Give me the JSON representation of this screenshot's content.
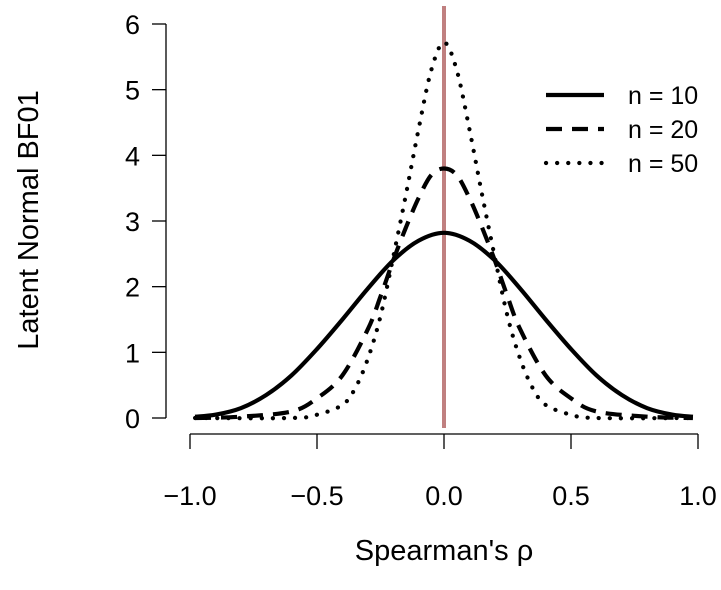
{
  "chart_data": {
    "type": "line",
    "title": "",
    "xlabel": "Spearman's ρ",
    "ylabel": "Latent Normal BF01",
    "xlim": [
      -1.0,
      1.0
    ],
    "ylim": [
      0,
      6
    ],
    "xticks": [
      -1.0,
      -0.5,
      0.0,
      0.5,
      1.0
    ],
    "xtick_labels": [
      "−1.0",
      "−0.5",
      "0.0",
      "0.5",
      "1.0"
    ],
    "yticks": [
      0,
      1,
      2,
      3,
      4,
      5,
      6
    ],
    "ytick_labels": [
      "0",
      "1",
      "2",
      "3",
      "4",
      "5",
      "6"
    ],
    "grid": false,
    "legend": {
      "position": "top-right"
    },
    "reference_line": {
      "x": 0.0,
      "color": "#c08080"
    },
    "series": [
      {
        "name": "n = 10",
        "style": "solid",
        "x": [
          -0.98,
          -0.9,
          -0.8,
          -0.7,
          -0.6,
          -0.5,
          -0.4,
          -0.3,
          -0.2,
          -0.1,
          0.0,
          0.1,
          0.2,
          0.3,
          0.4,
          0.5,
          0.6,
          0.7,
          0.8,
          0.9,
          0.98
        ],
        "y": [
          0.02,
          0.05,
          0.15,
          0.35,
          0.65,
          1.05,
          1.5,
          1.97,
          2.4,
          2.7,
          2.82,
          2.7,
          2.4,
          1.97,
          1.5,
          1.05,
          0.65,
          0.35,
          0.15,
          0.05,
          0.02
        ]
      },
      {
        "name": "n = 20",
        "style": "dashed",
        "x": [
          -0.98,
          -0.8,
          -0.6,
          -0.5,
          -0.4,
          -0.3,
          -0.25,
          -0.2,
          -0.15,
          -0.1,
          -0.05,
          0.0,
          0.05,
          0.1,
          0.15,
          0.2,
          0.25,
          0.3,
          0.4,
          0.5,
          0.6,
          0.8,
          0.98
        ],
        "y": [
          0.0,
          0.02,
          0.1,
          0.3,
          0.65,
          1.35,
          1.85,
          2.4,
          2.9,
          3.35,
          3.7,
          3.8,
          3.7,
          3.35,
          2.9,
          2.4,
          1.85,
          1.35,
          0.65,
          0.3,
          0.1,
          0.02,
          0.0
        ]
      },
      {
        "name": "n = 50",
        "style": "dotted",
        "x": [
          -0.98,
          -0.6,
          -0.5,
          -0.4,
          -0.35,
          -0.3,
          -0.25,
          -0.2,
          -0.15,
          -0.1,
          -0.05,
          0.0,
          0.05,
          0.1,
          0.15,
          0.2,
          0.25,
          0.3,
          0.35,
          0.4,
          0.5,
          0.6,
          0.98
        ],
        "y": [
          0.0,
          0.0,
          0.05,
          0.2,
          0.45,
          0.9,
          1.55,
          2.45,
          3.4,
          4.4,
          5.3,
          5.72,
          5.3,
          4.4,
          3.4,
          2.45,
          1.55,
          0.9,
          0.45,
          0.2,
          0.05,
          0.0,
          0.0
        ]
      }
    ]
  }
}
